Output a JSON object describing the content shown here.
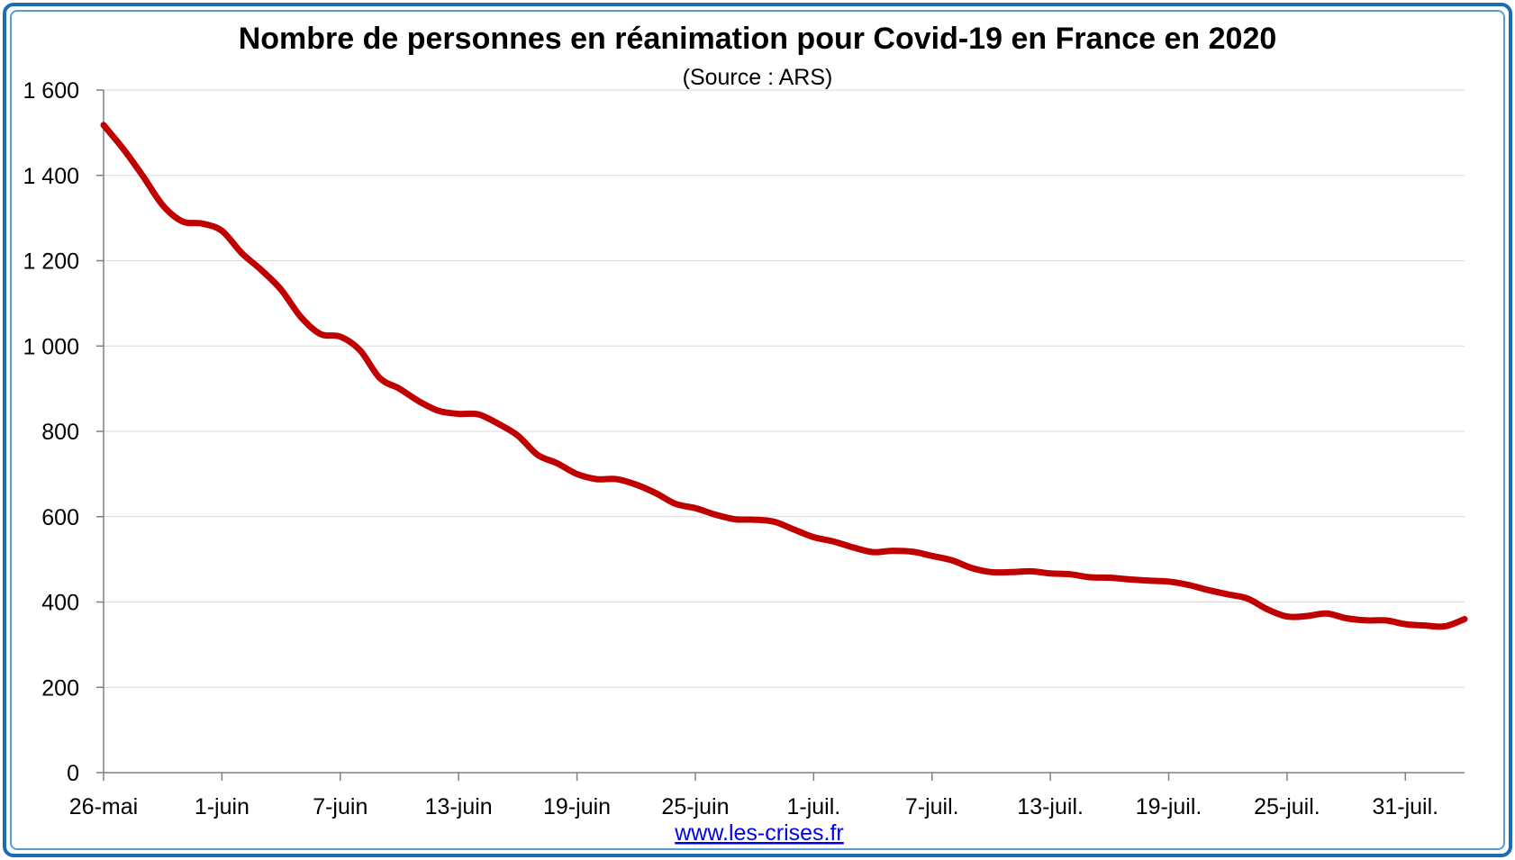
{
  "chart_data": {
    "type": "line",
    "title": "Nombre de personnes en réanimation pour Covid-19 en France en 2020",
    "subtitle": "(Source : ARS)",
    "xlabel": "",
    "ylabel": "",
    "ylim": [
      0,
      1600
    ],
    "y_ticks": [
      0,
      200,
      400,
      600,
      800,
      1000,
      1200,
      1400,
      1600
    ],
    "y_tick_labels": [
      "0",
      "200",
      "400",
      "600",
      "800",
      "1 000",
      "1 200",
      "1 400",
      "1 600"
    ],
    "x_tick_labels": [
      "26-mai",
      "1-juin",
      "7-juin",
      "13-juin",
      "19-juin",
      "25-juin",
      "1-juil.",
      "7-juil.",
      "13-juil.",
      "19-juil.",
      "25-juil.",
      "31-juil."
    ],
    "x_tick_dates": [
      "2020-05-26",
      "2020-06-01",
      "2020-06-07",
      "2020-06-13",
      "2020-06-19",
      "2020-06-25",
      "2020-07-01",
      "2020-07-07",
      "2020-07-13",
      "2020-07-19",
      "2020-07-25",
      "2020-07-31"
    ],
    "grid": true,
    "legend": "none",
    "series": [
      {
        "color": "#c00000",
        "x": [
          "2020-05-26",
          "2020-05-27",
          "2020-05-28",
          "2020-05-29",
          "2020-05-30",
          "2020-05-31",
          "2020-06-01",
          "2020-06-02",
          "2020-06-03",
          "2020-06-04",
          "2020-06-05",
          "2020-06-06",
          "2020-06-07",
          "2020-06-08",
          "2020-06-09",
          "2020-06-10",
          "2020-06-11",
          "2020-06-12",
          "2020-06-13",
          "2020-06-14",
          "2020-06-15",
          "2020-06-16",
          "2020-06-17",
          "2020-06-18",
          "2020-06-19",
          "2020-06-20",
          "2020-06-21",
          "2020-06-22",
          "2020-06-23",
          "2020-06-24",
          "2020-06-25",
          "2020-06-26",
          "2020-06-27",
          "2020-06-28",
          "2020-06-29",
          "2020-06-30",
          "2020-07-01",
          "2020-07-02",
          "2020-07-03",
          "2020-07-04",
          "2020-07-05",
          "2020-07-06",
          "2020-07-07",
          "2020-07-08",
          "2020-07-09",
          "2020-07-10",
          "2020-07-11",
          "2020-07-12",
          "2020-07-13",
          "2020-07-14",
          "2020-07-15",
          "2020-07-16",
          "2020-07-17",
          "2020-07-18",
          "2020-07-19",
          "2020-07-20",
          "2020-07-21",
          "2020-07-22",
          "2020-07-23",
          "2020-07-24",
          "2020-07-25",
          "2020-07-26",
          "2020-07-27",
          "2020-07-28",
          "2020-07-29",
          "2020-07-30",
          "2020-07-31",
          "2020-08-01",
          "2020-08-02",
          "2020-08-03"
        ],
        "values": [
          1518,
          1462,
          1398,
          1330,
          1292,
          1287,
          1270,
          1218,
          1178,
          1132,
          1068,
          1028,
          1022,
          990,
          925,
          900,
          870,
          848,
          841,
          840,
          818,
          790,
          745,
          725,
          700,
          688,
          688,
          675,
          655,
          630,
          620,
          605,
          594,
          593,
          588,
          570,
          552,
          542,
          528,
          517,
          520,
          518,
          508,
          498,
          480,
          470,
          470,
          472,
          467,
          465,
          458,
          457,
          453,
          450,
          448,
          440,
          428,
          418,
          408,
          383,
          366,
          367,
          373,
          362,
          357,
          357,
          348,
          345,
          343,
          360
        ]
      }
    ]
  },
  "footer": {
    "source_link": "www.les-crises.fr"
  }
}
